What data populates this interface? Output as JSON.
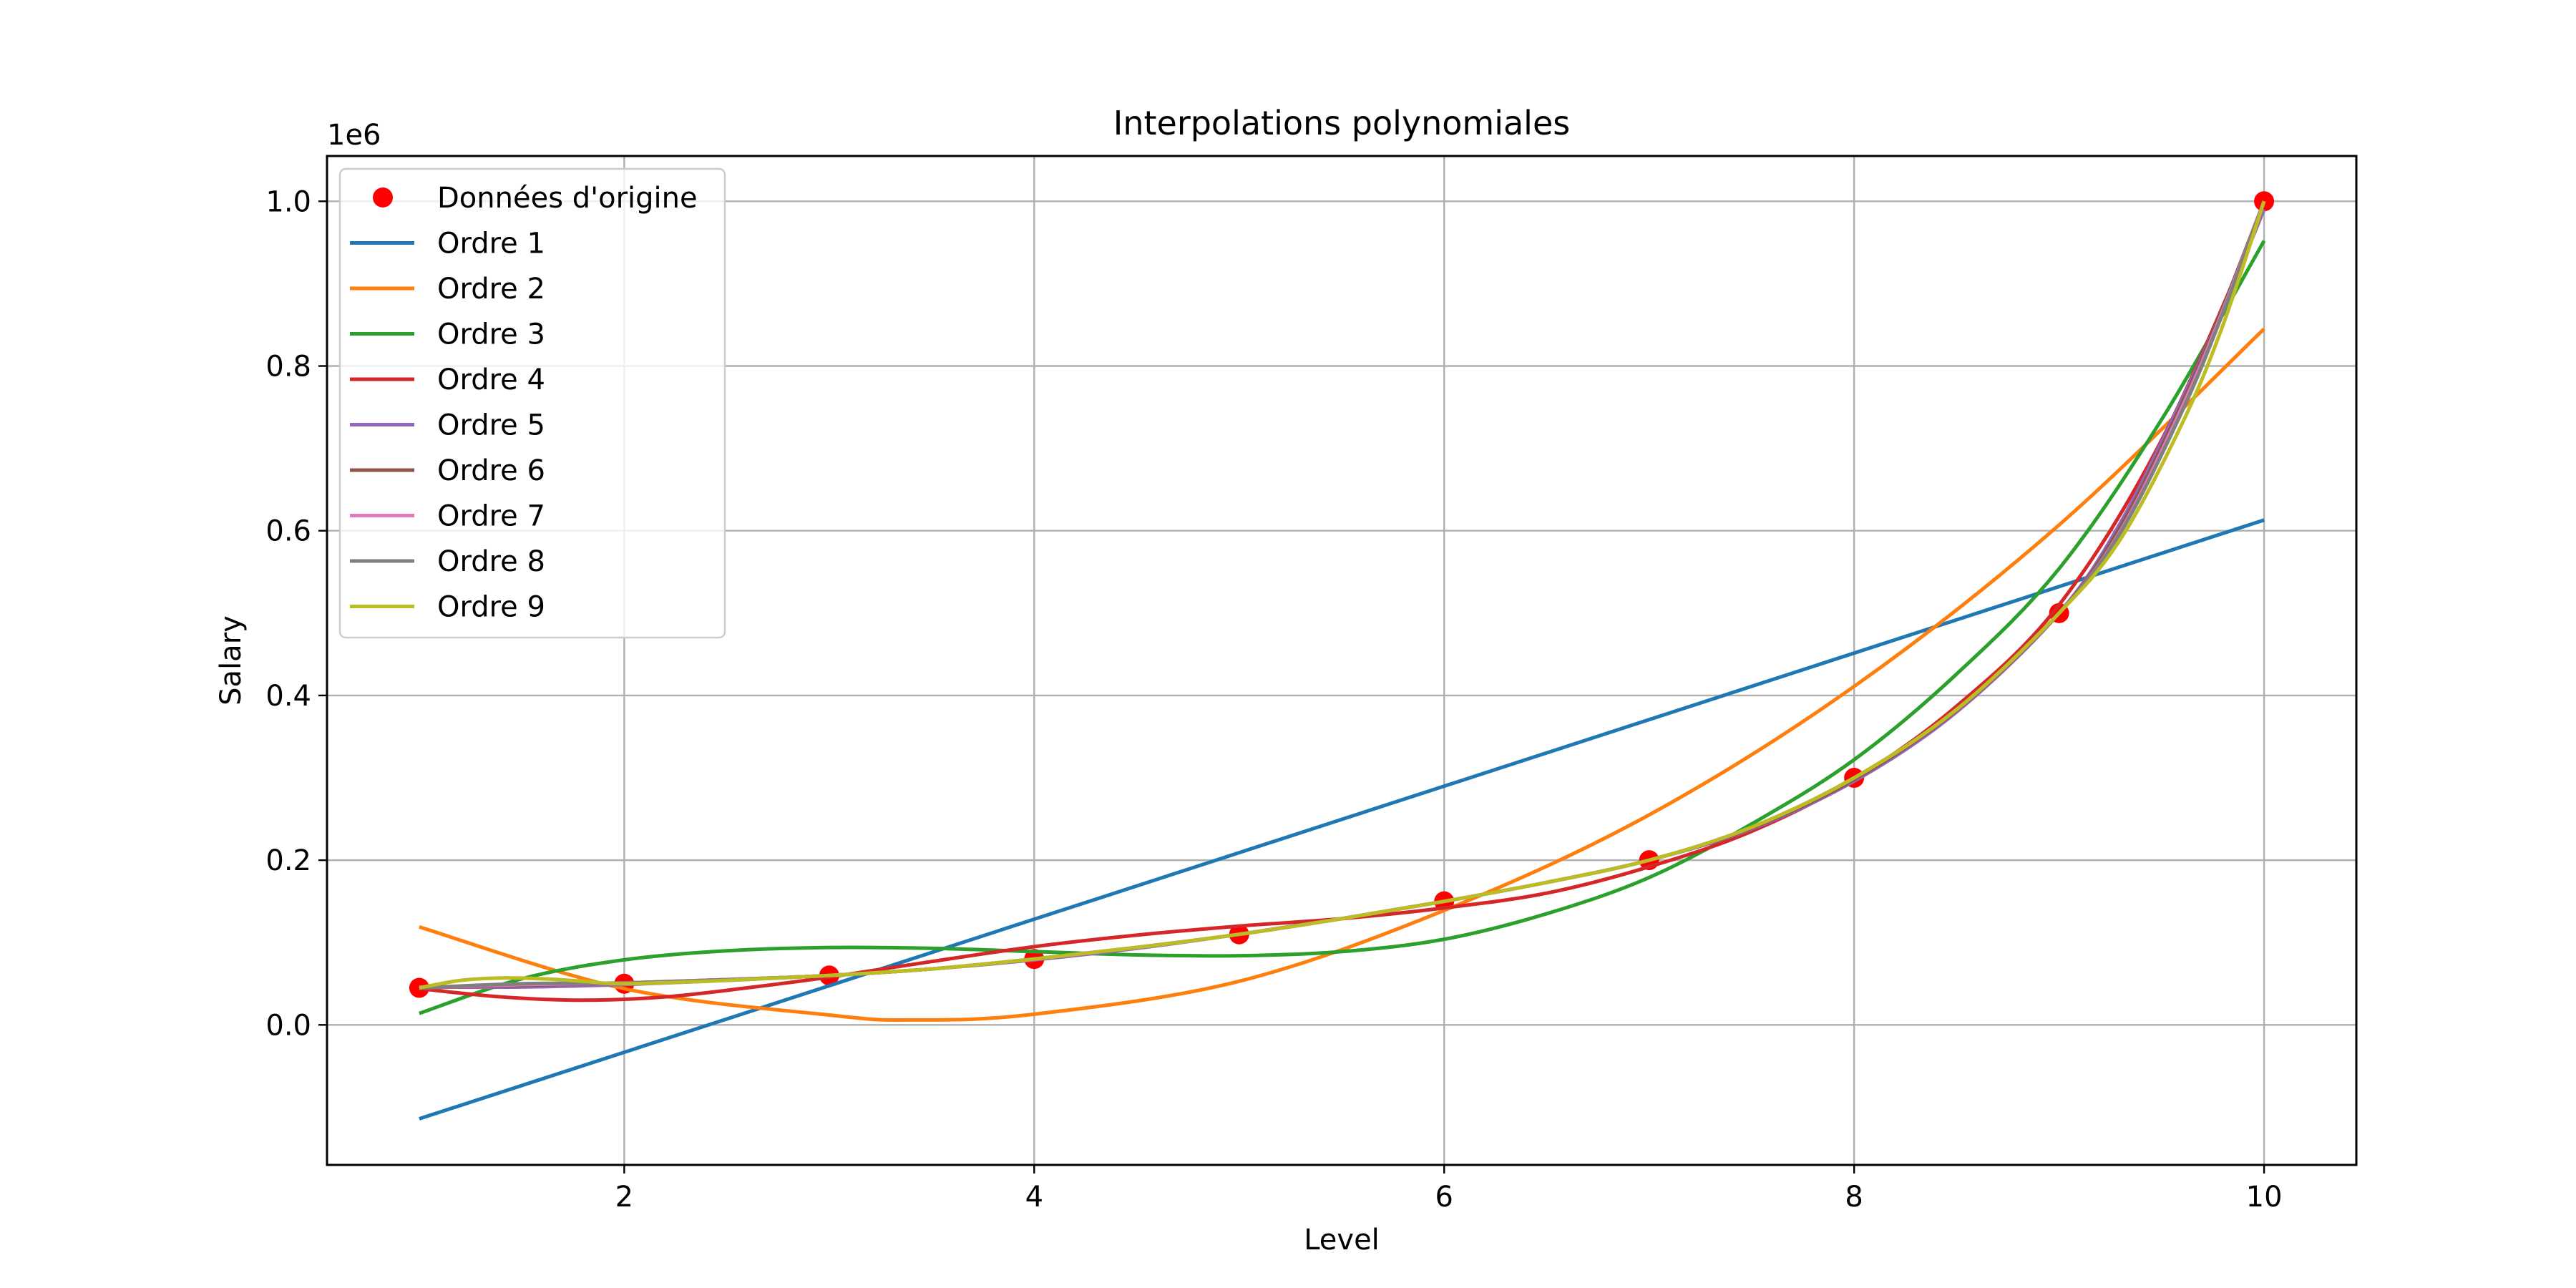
{
  "chart_data": {
    "type": "line",
    "title": "Interpolations polynomiales",
    "xlabel": "Level",
    "ylabel": "Salary",
    "y_offset_label": "1e6",
    "xlim": [
      0.55,
      10.45
    ],
    "ylim": [
      -0.17,
      1.055
    ],
    "xticks": [
      2,
      4,
      6,
      8,
      10
    ],
    "xtick_labels": [
      "2",
      "4",
      "6",
      "8",
      "10"
    ],
    "yticks": [
      0.0,
      0.2,
      0.4,
      0.6,
      0.8,
      1.0
    ],
    "ytick_labels": [
      "0.0",
      "0.2",
      "0.4",
      "0.6",
      "0.8",
      "1.0"
    ],
    "grid": true,
    "legend_position": "upper-left",
    "scatter": {
      "name": "Données d'origine",
      "color": "#ff0000",
      "x": [
        1,
        2,
        3,
        4,
        5,
        6,
        7,
        8,
        9,
        10
      ],
      "y": [
        0.045,
        0.05,
        0.06,
        0.08,
        0.11,
        0.15,
        0.2,
        0.3,
        0.5,
        1.0
      ]
    },
    "series": [
      {
        "name": "Ordre 1",
        "color": "#1f77b4",
        "x": [
          1,
          10
        ],
        "y": [
          -0.114,
          0.613
        ]
      },
      {
        "name": "Ordre 2",
        "color": "#ff7f0e",
        "x": [
          1,
          2,
          3,
          3.4,
          4,
          5,
          6,
          7,
          8,
          9,
          10
        ],
        "y": [
          0.119,
          0.044,
          0.012,
          0.006,
          0.013,
          0.053,
          0.139,
          0.255,
          0.411,
          0.607,
          0.845
        ]
      },
      {
        "name": "Ordre 3",
        "color": "#2ca02c",
        "x": [
          1,
          1.5,
          2,
          2.5,
          3,
          3.5,
          4,
          4.5,
          5,
          5.5,
          6,
          6.5,
          7,
          7.5,
          8,
          8.5,
          9,
          9.5,
          10
        ],
        "y": [
          0.014,
          0.056,
          0.079,
          0.09,
          0.094,
          0.093,
          0.089,
          0.085,
          0.084,
          0.089,
          0.104,
          0.135,
          0.179,
          0.244,
          0.322,
          0.426,
          0.554,
          0.735,
          0.952
        ]
      },
      {
        "name": "Ordre 4",
        "color": "#d62728",
        "x": [
          1,
          1.4,
          1.8,
          2.2,
          2.6,
          3,
          3.5,
          4,
          4.5,
          5,
          5.5,
          6,
          6.5,
          7,
          7.5,
          8,
          8.5,
          9,
          9.5,
          10
        ],
        "y": [
          0.044,
          0.034,
          0.03,
          0.034,
          0.045,
          0.058,
          0.077,
          0.095,
          0.109,
          0.12,
          0.129,
          0.142,
          0.16,
          0.192,
          0.235,
          0.298,
          0.387,
          0.51,
          0.71,
          0.99
        ]
      },
      {
        "name": "Ordre 5",
        "color": "#9467bd",
        "x": [
          1,
          1.5,
          2,
          2.5,
          3,
          3.5,
          4,
          4.5,
          5,
          5.5,
          6,
          6.5,
          7,
          7.5,
          8,
          8.5,
          9,
          9.3,
          9.6,
          9.8,
          10
        ],
        "y": [
          0.046,
          0.046,
          0.049,
          0.054,
          0.06,
          0.068,
          0.079,
          0.093,
          0.11,
          0.129,
          0.15,
          0.173,
          0.2,
          0.238,
          0.296,
          0.38,
          0.5,
          0.61,
          0.76,
          0.87,
          0.99
        ]
      },
      {
        "name": "Ordre 6",
        "color": "#8c564b",
        "x": [
          1,
          1.5,
          2,
          2.5,
          3,
          3.5,
          4,
          4.5,
          5,
          5.5,
          6,
          6.5,
          7,
          7.5,
          8,
          8.5,
          9,
          9.3,
          9.6,
          9.8,
          10
        ],
        "y": [
          0.045,
          0.048,
          0.051,
          0.055,
          0.06,
          0.068,
          0.08,
          0.094,
          0.11,
          0.129,
          0.15,
          0.173,
          0.2,
          0.239,
          0.298,
          0.382,
          0.5,
          0.605,
          0.755,
          0.872,
          1.0
        ]
      },
      {
        "name": "Ordre 7",
        "color": "#e377c2",
        "x": [
          1,
          1.5,
          2,
          2.5,
          3,
          3.5,
          4,
          4.5,
          5,
          5.5,
          6,
          6.5,
          7,
          7.5,
          8,
          8.5,
          9,
          9.3,
          9.6,
          9.8,
          10
        ],
        "y": [
          0.045,
          0.049,
          0.051,
          0.055,
          0.06,
          0.068,
          0.08,
          0.094,
          0.11,
          0.129,
          0.15,
          0.173,
          0.2,
          0.24,
          0.3,
          0.383,
          0.5,
          0.6,
          0.75,
          0.868,
          1.0
        ]
      },
      {
        "name": "Ordre 8",
        "color": "#7f7f7f",
        "x": [
          1,
          1.5,
          2,
          2.5,
          3,
          3.5,
          4,
          4.5,
          5,
          5.5,
          6,
          6.5,
          7,
          7.5,
          8,
          8.5,
          9,
          9.3,
          9.6,
          9.8,
          10
        ],
        "y": [
          0.045,
          0.05,
          0.051,
          0.055,
          0.06,
          0.068,
          0.08,
          0.094,
          0.11,
          0.129,
          0.15,
          0.173,
          0.2,
          0.24,
          0.3,
          0.383,
          0.5,
          0.598,
          0.745,
          0.865,
          1.0
        ]
      },
      {
        "name": "Ordre 9",
        "color": "#bcbd22",
        "x": [
          1,
          1.2,
          1.4,
          1.6,
          1.8,
          2,
          2.5,
          3,
          3.5,
          4,
          4.5,
          5,
          5.5,
          6,
          6.5,
          7,
          7.5,
          8,
          8.5,
          9,
          9.3,
          9.6,
          9.8,
          10
        ],
        "y": [
          0.045,
          0.054,
          0.057,
          0.056,
          0.053,
          0.05,
          0.054,
          0.06,
          0.068,
          0.08,
          0.094,
          0.11,
          0.129,
          0.15,
          0.173,
          0.2,
          0.24,
          0.3,
          0.383,
          0.5,
          0.59,
          0.73,
          0.85,
          1.0
        ]
      }
    ]
  }
}
